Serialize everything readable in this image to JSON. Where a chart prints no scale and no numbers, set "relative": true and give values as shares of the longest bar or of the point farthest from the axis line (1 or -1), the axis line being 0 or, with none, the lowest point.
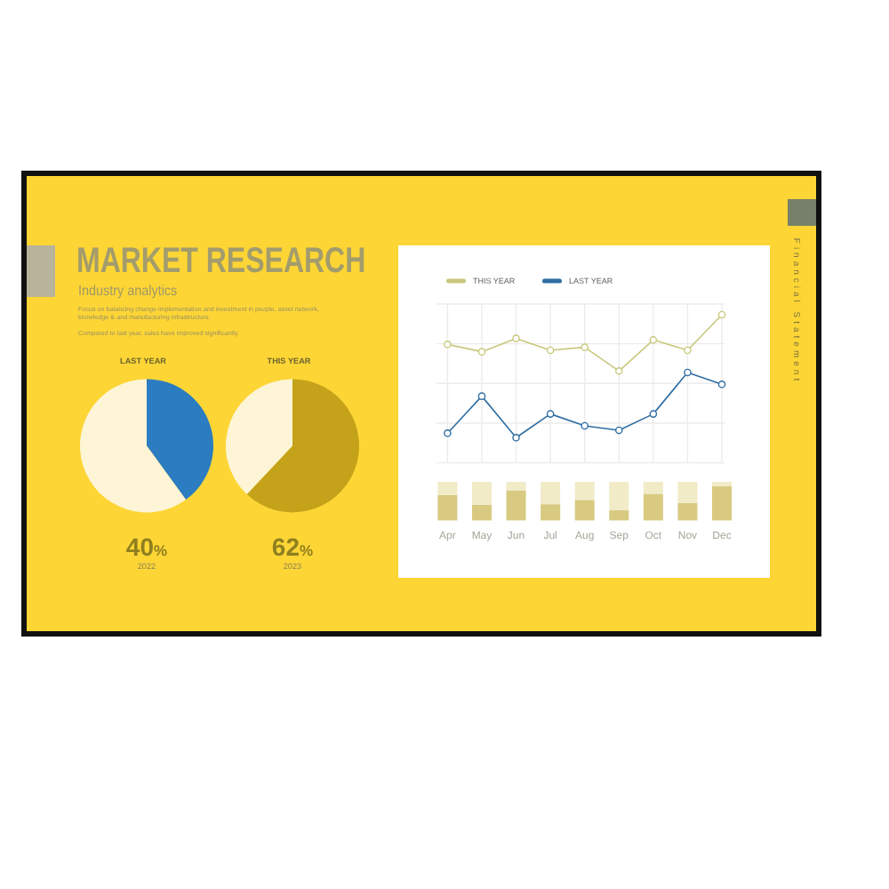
{
  "chart_data": [
    {
      "type": "other",
      "title": "MARKET RESEARCH",
      "subtitle": "Industry analytics",
      "annotations": [
        "Focus on balancing change implementation and investment in people, asset network, knowledge & and manufacturing infrastructure.",
        "Compared to last year, sales have improved significantly.",
        "Financial Statement"
      ]
    },
    {
      "type": "pie",
      "title": "LAST YEAR",
      "categories": [
        null,
        null
      ],
      "values": [
        40,
        60
      ],
      "colors": [
        "#2b7cc0",
        "#fdf5d6"
      ],
      "annotations": [
        "40%",
        "2022"
      ]
    },
    {
      "type": "pie",
      "title": "THIS YEAR",
      "categories": [
        null,
        null
      ],
      "values": [
        62,
        38
      ],
      "colors": [
        "#c4a31a",
        "#fdf5d6"
      ],
      "annotations": [
        "62%",
        "2023"
      ]
    },
    {
      "type": "line",
      "categories": [
        null,
        null,
        null,
        null,
        null,
        null,
        null,
        null,
        null
      ],
      "series": [
        {
          "name": "THIS YEAR",
          "color": "#c9c77c",
          "values": [
            0.8,
            0.75,
            0.84,
            0.76,
            0.78,
            0.62,
            0.83,
            0.76,
            1
          ]
        },
        {
          "name": "LAST YEAR",
          "color": "#2f6ea3",
          "values": [
            0.2,
            0.45,
            0.17,
            0.33,
            0.25,
            0.22,
            0.33,
            0.61,
            0.53
          ]
        }
      ],
      "relative": true,
      "grid": true,
      "legend": "top left",
      "marker": "circle"
    },
    {
      "type": "bar",
      "stacked": true,
      "categories": [
        "Apr",
        "May",
        "Jun",
        "Jul",
        "Aug",
        "Sep",
        "Oct",
        "Nov",
        "Dec"
      ],
      "series": [
        {
          "color": "#d8ca80",
          "values": [
            0.66,
            0.41,
            0.78,
            0.42,
            0.53,
            0.27,
            0.69,
            0.45,
            0.89
          ]
        },
        {
          "color": "#f1ebc8",
          "values": [
            0.34,
            0.59,
            0.22,
            0.58,
            0.47,
            0.73,
            0.31,
            0.55,
            0.11
          ]
        }
      ],
      "relative": true
    }
  ]
}
